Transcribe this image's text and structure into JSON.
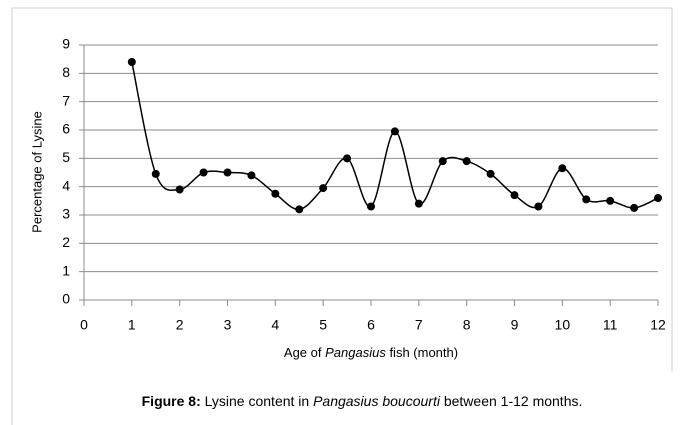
{
  "chart_data": {
    "type": "line",
    "y_label": "Percentage of Lysine",
    "x_label": [
      "Age of ",
      "Pangasius",
      " fish (month)"
    ],
    "caption": [
      "Figure 8:",
      " Lysine content in ",
      "Pangasius boucourti",
      " between 1-12 months."
    ],
    "x": [
      1,
      1.5,
      2,
      2.5,
      3,
      3.5,
      4,
      4.5,
      5,
      5.5,
      6,
      6.5,
      7,
      7.5,
      8,
      8.5,
      9,
      9.5,
      10,
      10.5,
      11,
      11.5,
      12
    ],
    "series": [
      {
        "color": "#000000",
        "values": [
          8.4,
          4.45,
          3.9,
          4.5,
          4.5,
          4.4,
          3.75,
          3.2,
          3.95,
          5.0,
          3.3,
          5.95,
          3.4,
          4.9,
          4.9,
          4.45,
          3.7,
          3.3,
          4.65,
          3.55,
          3.5,
          3.25,
          3.6
        ]
      }
    ],
    "xlim": [
      0,
      12
    ],
    "xticks": [
      0,
      1,
      2,
      3,
      4,
      5,
      6,
      7,
      8,
      9,
      10,
      11,
      12
    ],
    "ylim": [
      0,
      9
    ],
    "yticks": [
      0,
      1,
      2,
      3,
      4,
      5,
      6,
      7,
      8,
      9
    ],
    "grid": true,
    "smooth": true
  }
}
